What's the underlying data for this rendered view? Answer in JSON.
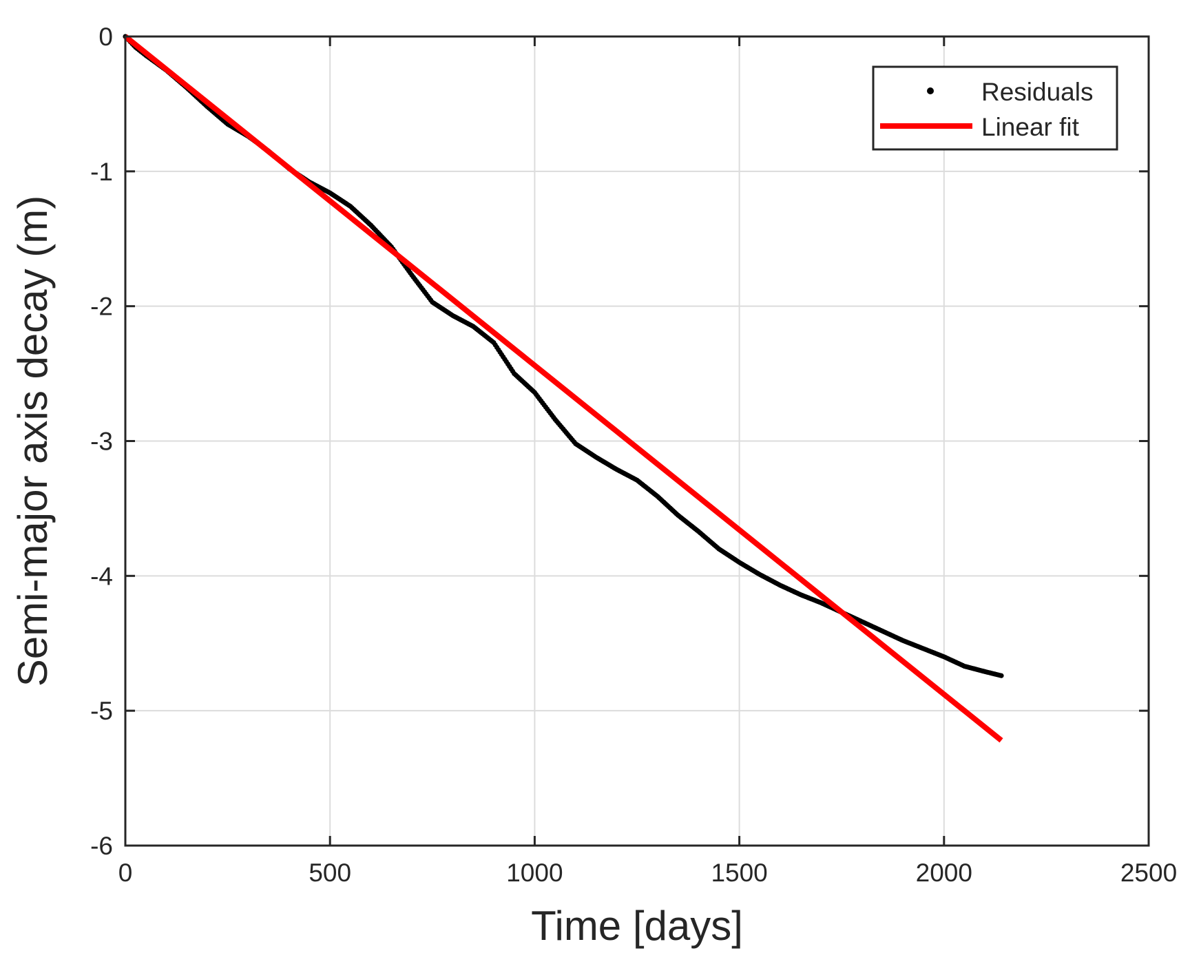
{
  "chart_data": {
    "type": "scatter",
    "title": "",
    "xlabel": "Time [days]",
    "ylabel": "Semi-major axis decay  (m)",
    "xlim": [
      0,
      2500
    ],
    "ylim": [
      -6,
      0
    ],
    "xticks": [
      0,
      500,
      1000,
      1500,
      2000,
      2500
    ],
    "yticks": [
      -6,
      -5,
      -4,
      -3,
      -2,
      -1,
      0
    ],
    "xtick_labels": [
      "0",
      "500",
      "1000",
      "1500",
      "2000",
      "2500"
    ],
    "ytick_labels": [
      "-6",
      "-5",
      "-4",
      "-3",
      "-2",
      "-1",
      "0"
    ],
    "grid": true,
    "legend_position": "top-right",
    "colors": {
      "residuals": "#000000",
      "fit": "#ff0000",
      "grid": "#dcdcdc",
      "axes": "#262626"
    },
    "series": [
      {
        "name": "Residuals",
        "kind": "markers",
        "x": [
          0,
          25,
          50,
          100,
          150,
          200,
          250,
          300,
          350,
          400,
          450,
          500,
          550,
          600,
          650,
          700,
          750,
          800,
          850,
          900,
          950,
          1000,
          1050,
          1100,
          1150,
          1200,
          1250,
          1300,
          1350,
          1400,
          1450,
          1500,
          1550,
          1600,
          1650,
          1700,
          1750,
          1800,
          1850,
          1900,
          1950,
          2000,
          2050,
          2100,
          2140
        ],
        "y": [
          0,
          -0.08,
          -0.14,
          -0.25,
          -0.38,
          -0.52,
          -0.65,
          -0.74,
          -0.85,
          -0.98,
          -1.08,
          -1.16,
          -1.26,
          -1.4,
          -1.56,
          -1.77,
          -1.97,
          -2.07,
          -2.15,
          -2.27,
          -2.5,
          -2.64,
          -2.84,
          -3.02,
          -3.12,
          -3.21,
          -3.29,
          -3.41,
          -3.55,
          -3.67,
          -3.8,
          -3.9,
          -3.99,
          -4.07,
          -4.14,
          -4.2,
          -4.27,
          -4.34,
          -4.41,
          -4.48,
          -4.54,
          -4.6,
          -4.67,
          -4.71,
          -4.74
        ]
      },
      {
        "name": "Linear fit",
        "kind": "line",
        "x": [
          0,
          2140
        ],
        "y": [
          0,
          -5.22
        ]
      }
    ]
  }
}
